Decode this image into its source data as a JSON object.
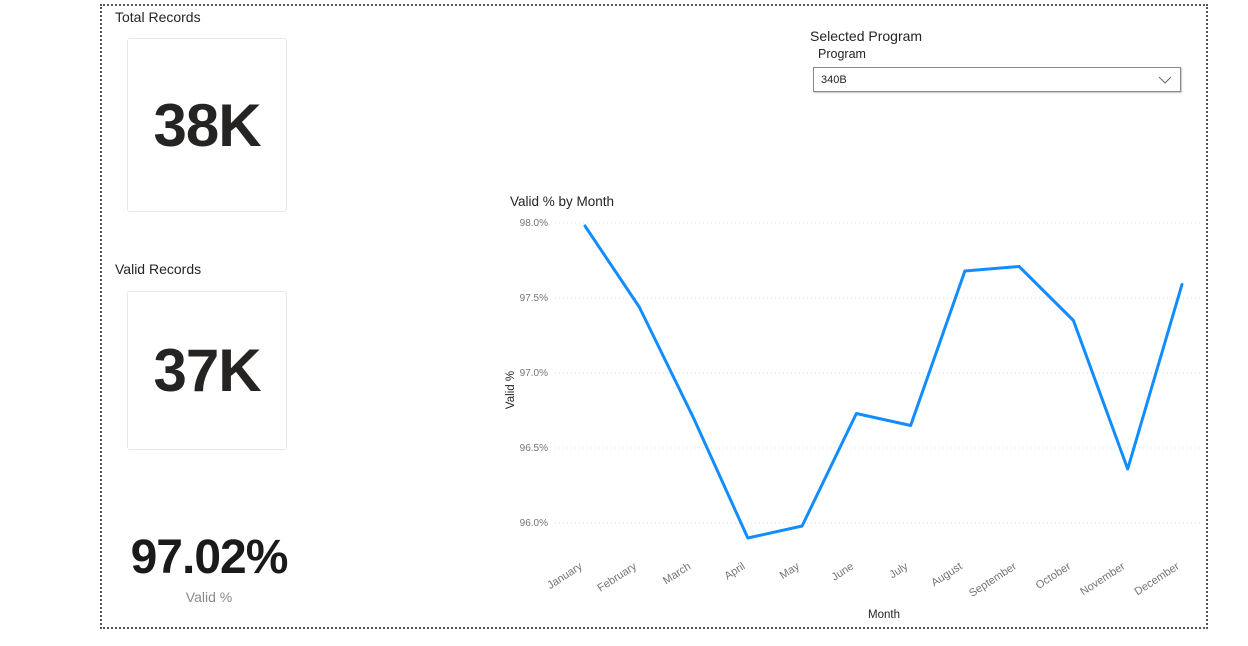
{
  "cards": {
    "total": {
      "title": "Total Records",
      "value": "38K"
    },
    "valid": {
      "title": "Valid Records",
      "value": "37K"
    },
    "percent": {
      "value": "97.02%",
      "caption": "Valid %"
    }
  },
  "slicer": {
    "title": "Selected Program",
    "field": "Program",
    "selected": "340B",
    "chevron_icon": "chevron-down"
  },
  "chart_data": {
    "type": "line",
    "title": "Valid % by Month",
    "xlabel": "Month",
    "ylabel": "Valid %",
    "categories": [
      "January",
      "February",
      "March",
      "April",
      "May",
      "June",
      "July",
      "August",
      "September",
      "October",
      "November",
      "December"
    ],
    "values": [
      97.98,
      97.44,
      96.7,
      95.9,
      95.98,
      96.73,
      96.65,
      97.68,
      97.71,
      97.35,
      96.36,
      97.59
    ],
    "yticks": [
      98.0,
      97.5,
      97.0,
      96.5,
      96.0
    ],
    "ytick_labels": [
      "98.0%",
      "97.5%",
      "97.0%",
      "96.5%",
      "96.0%"
    ],
    "ylim": [
      95.85,
      98.05
    ],
    "grid": "horizontal-dotted",
    "legend": "none",
    "line_color": "#118DFF"
  },
  "colors": {
    "accent_line": "#118DFF",
    "text_primary": "#252423",
    "text_secondary": "#757575",
    "grid_line": "#DCDCDC",
    "card_border": "#E8E8E8",
    "outer_border": "#555555"
  }
}
